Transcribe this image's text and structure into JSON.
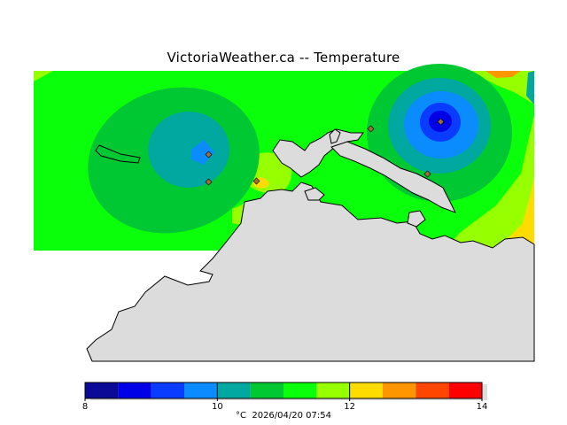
{
  "title": "VictoriaWeather.ca -- Temperature",
  "legend": {
    "unit": "°C",
    "timestamp": "2026/04/20 07:54",
    "ticks": [
      "8",
      "10",
      "12",
      "14"
    ],
    "min": 8,
    "max": 14,
    "colors": [
      "#0a0a96",
      "#0000e6",
      "#0a3cff",
      "#0a8cff",
      "#00a8a0",
      "#00c832",
      "#0aff0a",
      "#96ff00",
      "#ffdc00",
      "#ff9600",
      "#ff4600",
      "#ff0000"
    ]
  },
  "colors": {
    "land": "#dcdcdc",
    "coast": "#000000",
    "station": "#a06e3c"
  }
}
